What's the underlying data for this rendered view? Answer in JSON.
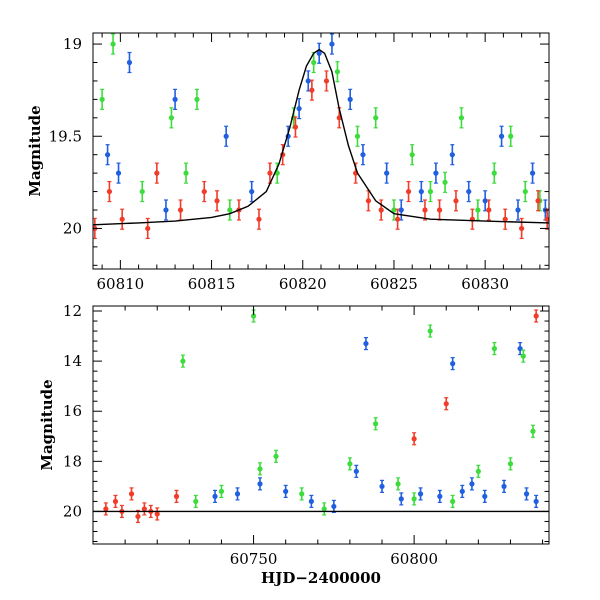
{
  "figure": {
    "xlabel": "HJD−2400000"
  },
  "colors": {
    "blue": "#1f5fe0",
    "green": "#3cdc3c",
    "red": "#f03c28",
    "model": "#000000"
  },
  "chart_data": [
    {
      "type": "scatter",
      "panel": "top",
      "ylabel": "Magnitude",
      "xlim": [
        60808.5,
        60833.5
      ],
      "ylim": [
        20.22,
        18.94
      ],
      "y_inverted": true,
      "xticks": [
        60810,
        60815,
        60820,
        60825,
        60830
      ],
      "yticks": [
        19,
        19.5,
        20
      ],
      "series": [
        {
          "color": "blue",
          "x": [
            60809.3,
            60809.9,
            60810.5,
            60812.5,
            60813.0,
            60815.8,
            60817.2,
            60819.2,
            60819.8,
            60820.3,
            60820.9,
            60821.6,
            60822.6,
            60823.3,
            60824.6,
            60825.4,
            60826.5,
            60827.3,
            60828.2,
            60829.1,
            60830.0,
            60830.9,
            60831.8,
            60832.6,
            60833.3
          ],
          "y": [
            19.6,
            19.7,
            19.1,
            19.9,
            19.3,
            19.5,
            19.8,
            19.5,
            19.35,
            19.2,
            19.05,
            19.0,
            19.3,
            19.6,
            19.7,
            19.9,
            19.8,
            19.7,
            19.6,
            19.8,
            19.85,
            19.5,
            19.9,
            19.7,
            19.9
          ]
        },
        {
          "color": "green",
          "x": [
            60809.0,
            60809.6,
            60811.2,
            60812.8,
            60813.6,
            60814.2,
            60816.0,
            60818.6,
            60819.5,
            60820.6,
            60821.9,
            60823.0,
            60824.0,
            60825.0,
            60826.0,
            60827.0,
            60827.8,
            60828.7,
            60829.6,
            60830.5,
            60831.4,
            60832.2,
            60833.0
          ],
          "y": [
            19.3,
            19.0,
            19.8,
            19.4,
            19.7,
            19.3,
            19.9,
            19.7,
            19.4,
            19.1,
            19.15,
            19.5,
            19.4,
            19.9,
            19.6,
            19.8,
            19.75,
            19.4,
            19.9,
            19.7,
            19.5,
            19.8,
            19.85
          ]
        },
        {
          "color": "red",
          "x": [
            60808.6,
            60809.4,
            60810.1,
            60811.5,
            60812.0,
            60813.3,
            60814.6,
            60815.3,
            60816.5,
            60817.6,
            60818.2,
            60818.9,
            60819.6,
            60820.5,
            60821.3,
            60822.0,
            60822.9,
            60823.6,
            60824.3,
            60825.2,
            60825.8,
            60826.7,
            60827.5,
            60828.4,
            60829.3,
            60830.2,
            60831.1,
            60832.0,
            60832.9,
            60833.4
          ],
          "y": [
            20.0,
            19.8,
            19.95,
            20.0,
            19.7,
            19.9,
            19.8,
            19.85,
            19.9,
            19.95,
            19.7,
            19.6,
            19.45,
            19.25,
            19.2,
            19.4,
            19.7,
            19.85,
            19.9,
            19.95,
            19.8,
            19.9,
            19.9,
            19.85,
            19.95,
            19.9,
            19.95,
            20.0,
            19.85,
            19.95
          ]
        }
      ],
      "model_curve": {
        "x": [
          60808.5,
          60811,
          60813,
          60815,
          60816,
          60817,
          60818,
          60818.7,
          60819.3,
          60819.8,
          60820.2,
          60820.6,
          60820.9,
          60821.2,
          60821.6,
          60822.0,
          60822.5,
          60823.0,
          60824.0,
          60825.0,
          60827.0,
          60830.0,
          60833.5
        ],
        "y": [
          19.98,
          19.97,
          19.96,
          19.94,
          19.92,
          19.88,
          19.8,
          19.65,
          19.45,
          19.25,
          19.12,
          19.05,
          19.03,
          19.05,
          19.15,
          19.35,
          19.55,
          19.7,
          19.85,
          19.92,
          19.95,
          19.96,
          19.97
        ]
      }
    },
    {
      "type": "scatter",
      "panel": "bottom",
      "xlabel": "HJD−2400000",
      "ylabel": "Magnitude",
      "xlim": [
        60700,
        60842
      ],
      "ylim": [
        21.3,
        11.8
      ],
      "y_inverted": true,
      "xticks": [
        60750,
        60800
      ],
      "yticks": [
        12,
        14,
        16,
        18,
        20
      ],
      "series": [
        {
          "color": "blue",
          "x": [
            60738,
            60745,
            60752,
            60760,
            60768,
            60775,
            60782,
            60785,
            60790,
            60796,
            60802,
            60808,
            60812,
            60815,
            60818,
            60822,
            60828,
            60833,
            60835,
            60838
          ],
          "y": [
            19.4,
            19.3,
            18.9,
            19.2,
            19.6,
            19.8,
            18.4,
            13.3,
            19.0,
            19.5,
            19.3,
            19.4,
            14.1,
            19.2,
            18.9,
            19.4,
            19.0,
            13.5,
            19.3,
            19.6
          ]
        },
        {
          "color": "green",
          "x": [
            60728,
            60732,
            60740,
            60750,
            60752,
            60757,
            60765,
            60772,
            60780,
            60788,
            60795,
            60800,
            60805,
            60812,
            60820,
            60825,
            60830,
            60834,
            60837
          ],
          "y": [
            14.0,
            19.6,
            19.2,
            12.2,
            18.3,
            17.8,
            19.3,
            19.9,
            18.1,
            16.5,
            18.9,
            19.5,
            12.8,
            19.6,
            18.4,
            13.5,
            18.1,
            13.8,
            16.8
          ]
        },
        {
          "color": "red",
          "x": [
            60704,
            60707,
            60709,
            60712,
            60714,
            60716,
            60718,
            60720,
            60726,
            60800,
            60810,
            60838
          ],
          "y": [
            19.9,
            19.6,
            20.0,
            19.3,
            20.2,
            19.9,
            20.0,
            20.1,
            19.4,
            17.1,
            15.7,
            12.2
          ]
        }
      ],
      "model_curve": {
        "x": [
          60700,
          60842
        ],
        "y": [
          20.0,
          20.0
        ]
      }
    }
  ]
}
